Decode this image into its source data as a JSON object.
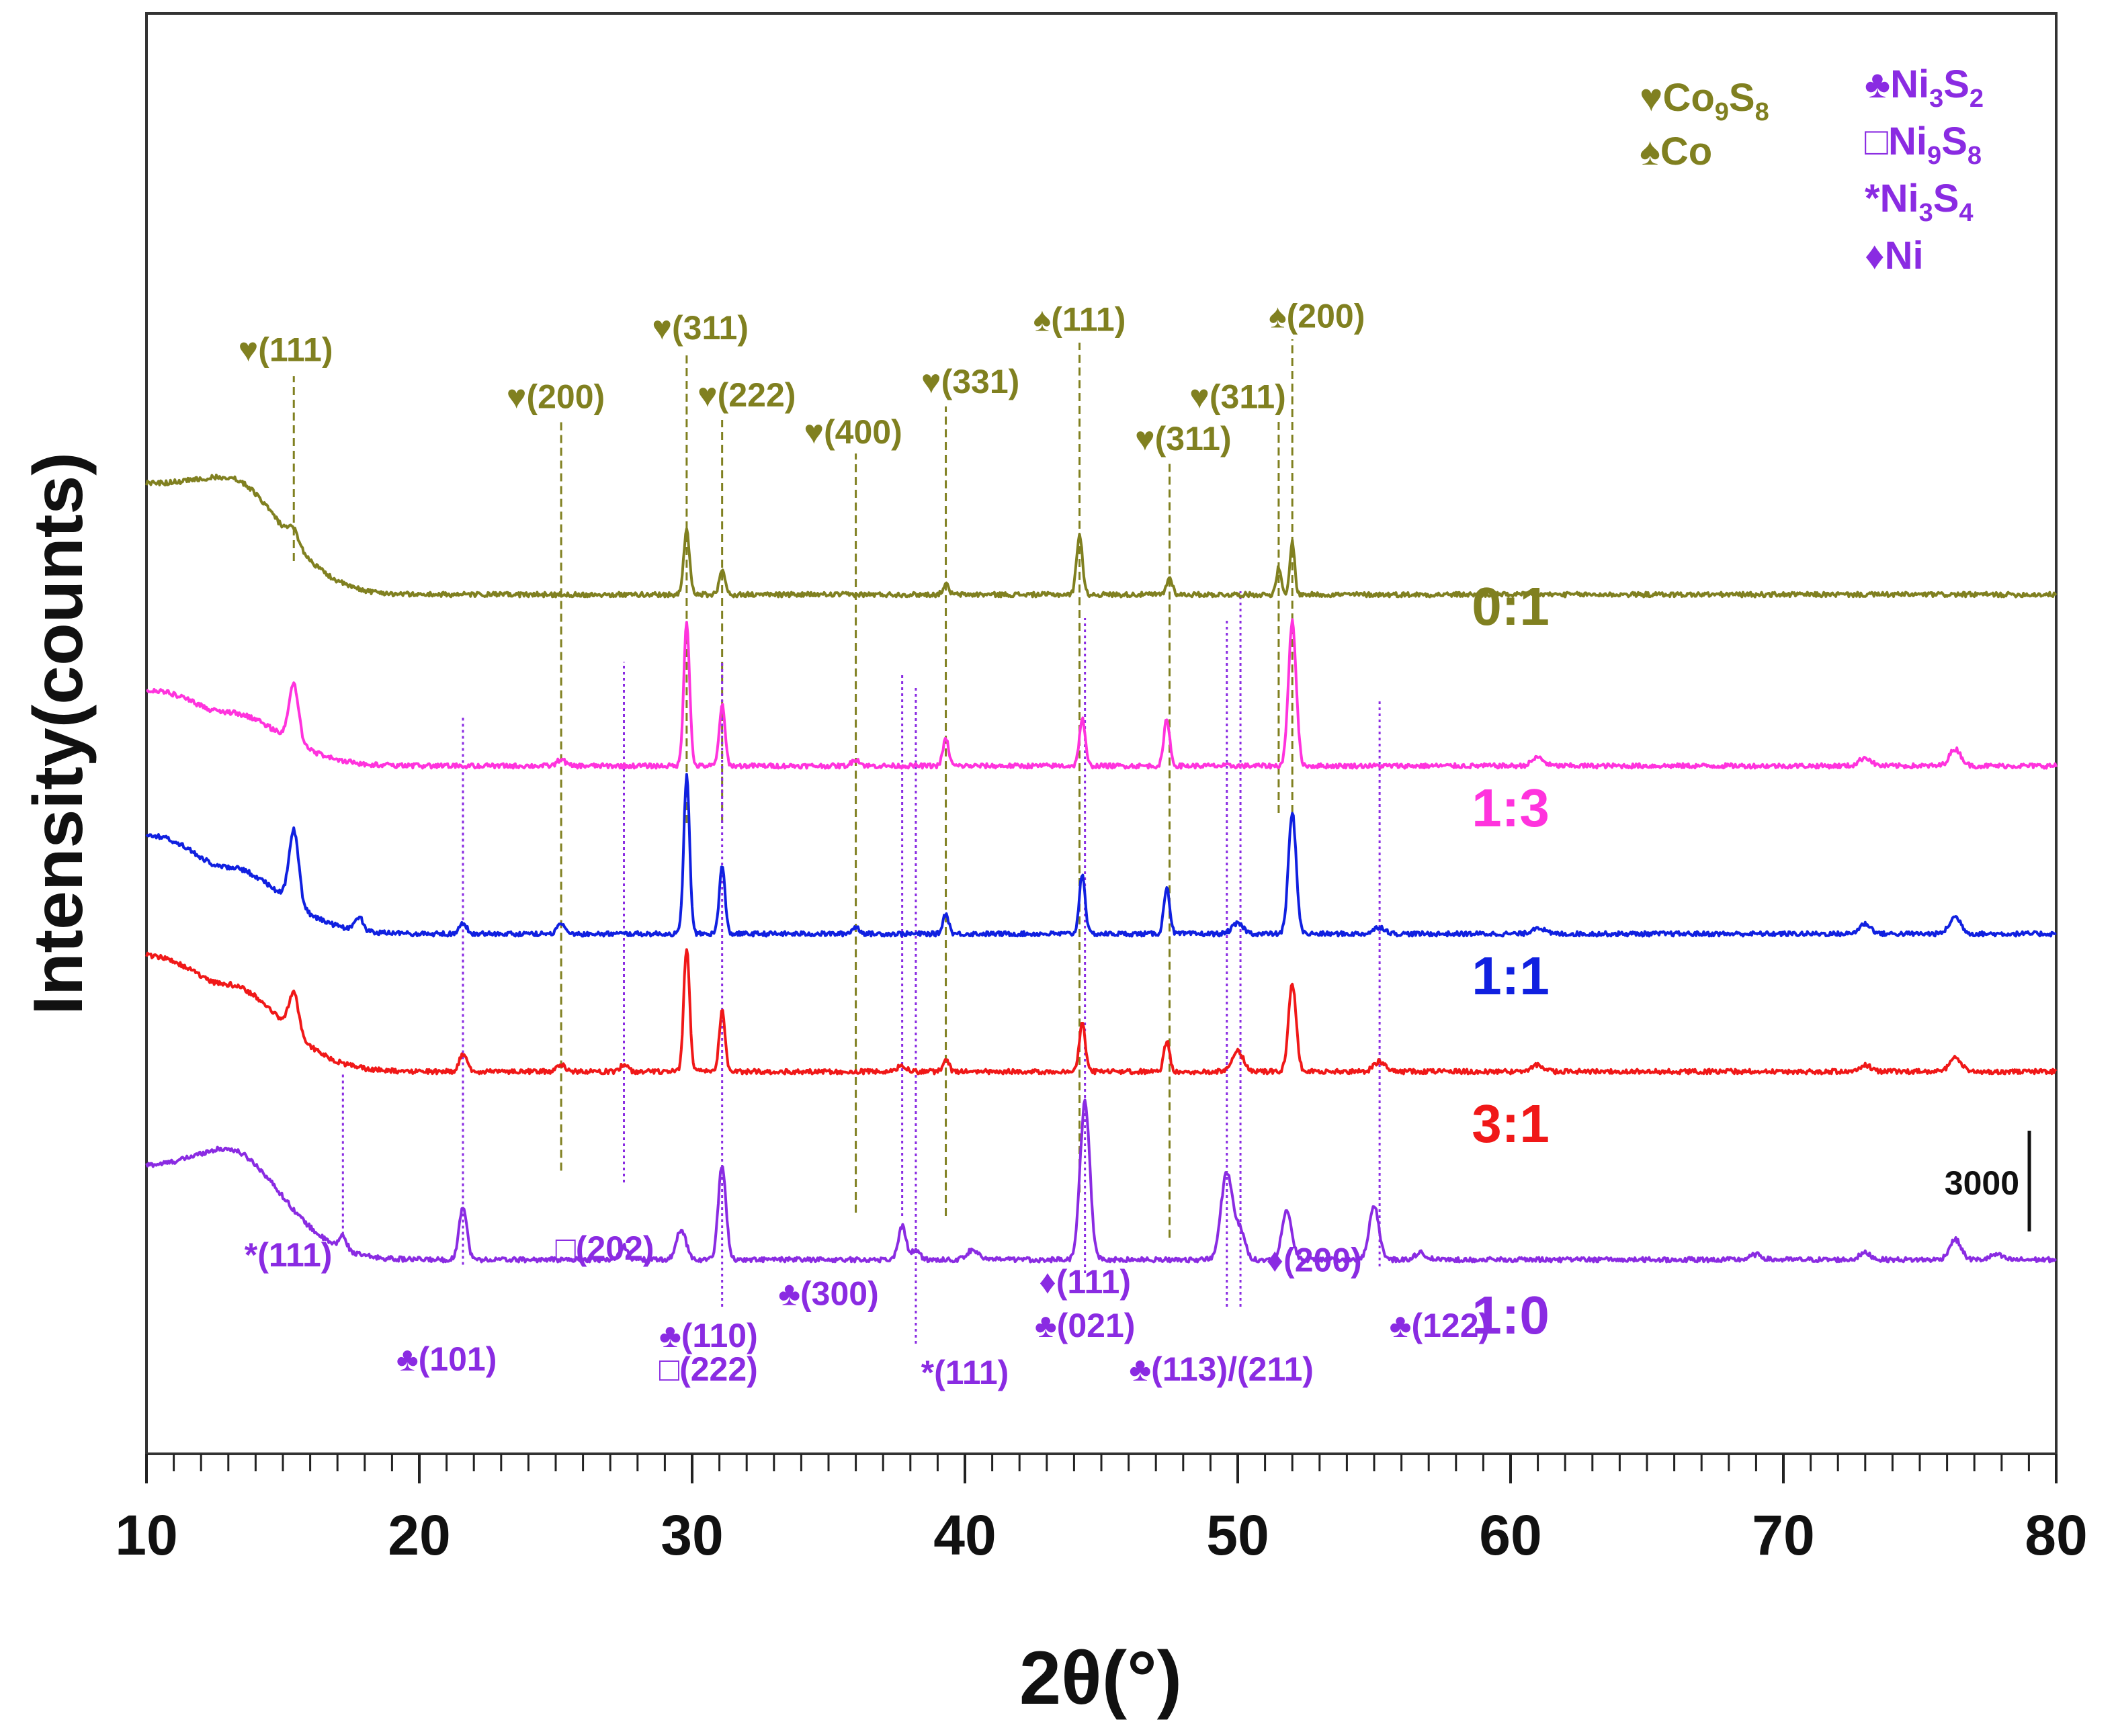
{
  "chart_data": {
    "type": "line",
    "title": "",
    "xlabel": "2θ(°)",
    "ylabel": "Intensity(counts)",
    "xlim": [
      10,
      80
    ],
    "xticks": [
      "10",
      "20",
      "30",
      "40",
      "50",
      "60",
      "70",
      "80"
    ],
    "scale_bar_label": "3000",
    "scale_bar_counts": 3000,
    "ylim_counts": [
      0,
      30000
    ],
    "series": [
      {
        "name": "0:1",
        "color": "#808020",
        "offset": 20000,
        "start_level": 3800,
        "baseline": 500,
        "bump": 3500,
        "decay": 10,
        "peaks": [
          [
            15.4,
            400,
            0.25
          ],
          [
            29.8,
            1900,
            0.15
          ],
          [
            31.1,
            700,
            0.15
          ],
          [
            39.3,
            300,
            0.15
          ],
          [
            44.2,
            1800,
            0.15
          ],
          [
            47.5,
            500,
            0.15
          ],
          [
            51.5,
            800,
            0.12
          ],
          [
            52.0,
            1600,
            0.12
          ]
        ]
      },
      {
        "name": "1:3",
        "color": "#ff33dd",
        "offset": 15400,
        "start_level": 2300,
        "baseline": 0,
        "bump": 1600,
        "decay": 10,
        "peaks": [
          [
            15.4,
            1700,
            0.25
          ],
          [
            25.2,
            200,
            0.2
          ],
          [
            29.8,
            4300,
            0.15
          ],
          [
            31.1,
            1800,
            0.15
          ],
          [
            36.0,
            200,
            0.2
          ],
          [
            39.3,
            800,
            0.15
          ],
          [
            44.3,
            1400,
            0.15
          ],
          [
            47.4,
            1400,
            0.15
          ],
          [
            52.0,
            4300,
            0.2
          ],
          [
            61.0,
            250,
            0.3
          ],
          [
            73.0,
            250,
            0.3
          ],
          [
            76.3,
            500,
            0.3
          ]
        ]
      },
      {
        "name": "1:1",
        "color": "#1020e0",
        "offset": 10400,
        "start_level": 3000,
        "baseline": 0,
        "bump": 2000,
        "decay": 10,
        "peaks": [
          [
            15.4,
            2200,
            0.25
          ],
          [
            17.8,
            400,
            0.2
          ],
          [
            21.6,
            300,
            0.2
          ],
          [
            25.2,
            300,
            0.2
          ],
          [
            29.8,
            4700,
            0.15
          ],
          [
            31.1,
            2000,
            0.15
          ],
          [
            36.0,
            200,
            0.2
          ],
          [
            39.3,
            600,
            0.15
          ],
          [
            44.3,
            1800,
            0.15
          ],
          [
            47.4,
            1400,
            0.15
          ],
          [
            50.0,
            300,
            0.3
          ],
          [
            52.0,
            3600,
            0.2
          ],
          [
            55.2,
            200,
            0.3
          ],
          [
            61.0,
            200,
            0.3
          ],
          [
            73.0,
            300,
            0.3
          ],
          [
            76.3,
            500,
            0.3
          ]
        ]
      },
      {
        "name": "3:1",
        "color": "#f01818",
        "offset": 6300,
        "start_level": 3500,
        "baseline": 0,
        "bump": 2600,
        "decay": 10,
        "peaks": [
          [
            15.4,
            1200,
            0.25
          ],
          [
            21.6,
            500,
            0.2
          ],
          [
            25.2,
            200,
            0.2
          ],
          [
            27.5,
            200,
            0.2
          ],
          [
            29.8,
            3700,
            0.15
          ],
          [
            31.1,
            1800,
            0.15
          ],
          [
            37.7,
            200,
            0.2
          ],
          [
            39.3,
            400,
            0.15
          ],
          [
            44.3,
            1500,
            0.15
          ],
          [
            47.4,
            900,
            0.15
          ],
          [
            50.0,
            600,
            0.3
          ],
          [
            52.0,
            2600,
            0.2
          ],
          [
            55.2,
            300,
            0.3
          ],
          [
            61.0,
            200,
            0.3
          ],
          [
            73.0,
            200,
            0.3
          ],
          [
            76.3,
            400,
            0.3
          ]
        ]
      },
      {
        "name": "1:0",
        "color": "#8a2be2",
        "offset": 0,
        "start_level": 3500,
        "baseline": 700,
        "bump": 3300,
        "decay": 10,
        "peaks": [
          [
            17.2,
            400,
            0.2
          ],
          [
            21.6,
            1600,
            0.2
          ],
          [
            27.5,
            400,
            0.2
          ],
          [
            29.6,
            900,
            0.25
          ],
          [
            31.1,
            2800,
            0.2
          ],
          [
            37.7,
            1000,
            0.2
          ],
          [
            38.2,
            300,
            0.2
          ],
          [
            40.3,
            300,
            0.3
          ],
          [
            44.4,
            4700,
            0.25
          ],
          [
            49.6,
            2600,
            0.3
          ],
          [
            50.1,
            800,
            0.25
          ],
          [
            51.8,
            1500,
            0.25
          ],
          [
            55.0,
            1600,
            0.25
          ],
          [
            56.7,
            200,
            0.3
          ],
          [
            69.0,
            150,
            0.3
          ],
          [
            73.0,
            200,
            0.3
          ],
          [
            76.3,
            600,
            0.3
          ],
          [
            77.8,
            150,
            0.3
          ]
        ]
      }
    ],
    "reference_lines": {
      "co": {
        "color": "#808020",
        "lines": [
          [
            15.4,
            21500,
            27000
          ],
          [
            25.2,
            3350,
            25700
          ],
          [
            29.8,
            13700,
            27700
          ],
          [
            31.1,
            13700,
            25700
          ],
          [
            36.0,
            2100,
            24700
          ],
          [
            39.3,
            2000,
            26100
          ],
          [
            44.2,
            2700,
            28000
          ],
          [
            47.5,
            1350,
            24400
          ],
          [
            51.5,
            14000,
            25700
          ],
          [
            52.0,
            14000,
            28100
          ]
        ]
      },
      "ni": {
        "color": "#8a2be2",
        "lines": [
          [
            17.2,
            1450,
            6300
          ],
          [
            21.6,
            550,
            16900
          ],
          [
            27.5,
            3000,
            18500
          ],
          [
            31.1,
            -700,
            18500
          ],
          [
            37.7,
            2000,
            18100
          ],
          [
            38.2,
            -1800,
            17800
          ],
          [
            44.4,
            300,
            19800
          ],
          [
            49.6,
            -700,
            19800
          ],
          [
            50.1,
            -700,
            20600
          ],
          [
            55.2,
            500,
            17400
          ]
        ]
      }
    },
    "annotations_co": [
      {
        "text": "♥(111)",
        "x": 15.1,
        "y": 27450
      },
      {
        "text": "♥(200)",
        "x": 25.0,
        "y": 26050
      },
      {
        "text": "♥(311)",
        "x": 30.3,
        "y": 28100
      },
      {
        "text": "♥(222)",
        "x": 32.0,
        "y": 26100
      },
      {
        "text": "♥(400)",
        "x": 35.9,
        "y": 25000
      },
      {
        "text": "♥(331)",
        "x": 40.2,
        "y": 26500
      },
      {
        "text": "♠(111)",
        "x": 44.2,
        "y": 28350
      },
      {
        "text": "♥(311)",
        "x": 48.0,
        "y": 24800
      },
      {
        "text": "♥(311)",
        "x": 50.0,
        "y": 26050
      },
      {
        "text": "♠(200)",
        "x": 52.9,
        "y": 28450
      }
    ],
    "annotations_ni": [
      {
        "text": "*(111)",
        "x": 15.2,
        "y": 500
      },
      {
        "text": "♣(101)",
        "x": 21.0,
        "y": -2600
      },
      {
        "text": "□(202)",
        "x": 26.8,
        "y": 700
      },
      {
        "text": "♣(110)",
        "x": 30.6,
        "y": -1900
      },
      {
        "text": "□(222)",
        "x": 30.6,
        "y": -2900
      },
      {
        "text": "♣(300)",
        "x": 35.0,
        "y": -650
      },
      {
        "text": "*(111)",
        "x": 40.0,
        "y": -3000
      },
      {
        "text": "♦(111)",
        "x": 44.4,
        "y": -300
      },
      {
        "text": "♣(021)",
        "x": 44.4,
        "y": -1600
      },
      {
        "text": "♣(113)/(211)",
        "x": 49.4,
        "y": -2900
      },
      {
        "text": "♦(200)",
        "x": 52.8,
        "y": 350
      },
      {
        "text": "♣(122)",
        "x": 57.4,
        "y": -1600
      }
    ],
    "series_labels": [
      {
        "text": "0:1",
        "x": 60.0,
        "y": 19600
      },
      {
        "text": "1:3",
        "x": 60.0,
        "y": 13600
      },
      {
        "text": "1:1",
        "x": 60.0,
        "y": 8600
      },
      {
        "text": "3:1",
        "x": 60.0,
        "y": 4200
      },
      {
        "text": "1:0",
        "x": 60.0,
        "y": -1500
      }
    ],
    "legend_co": [
      {
        "marker": "♥",
        "name": "Co",
        "sub1": "9",
        "mid": "S",
        "sub2": "8"
      },
      {
        "marker": "♠",
        "name": "Co",
        "sub1": "",
        "mid": "",
        "sub2": ""
      }
    ],
    "legend_ni": [
      {
        "marker": "♣",
        "name": "Ni",
        "sub1": "3",
        "mid": "S",
        "sub2": "2"
      },
      {
        "marker": "□",
        "name": "Ni",
        "sub1": "9",
        "mid": "S",
        "sub2": "8"
      },
      {
        "marker": "*",
        "name": "Ni",
        "sub1": "3",
        "mid": "S",
        "sub2": "4"
      },
      {
        "marker": "♦",
        "name": "Ni",
        "sub1": "",
        "mid": "",
        "sub2": ""
      }
    ]
  }
}
